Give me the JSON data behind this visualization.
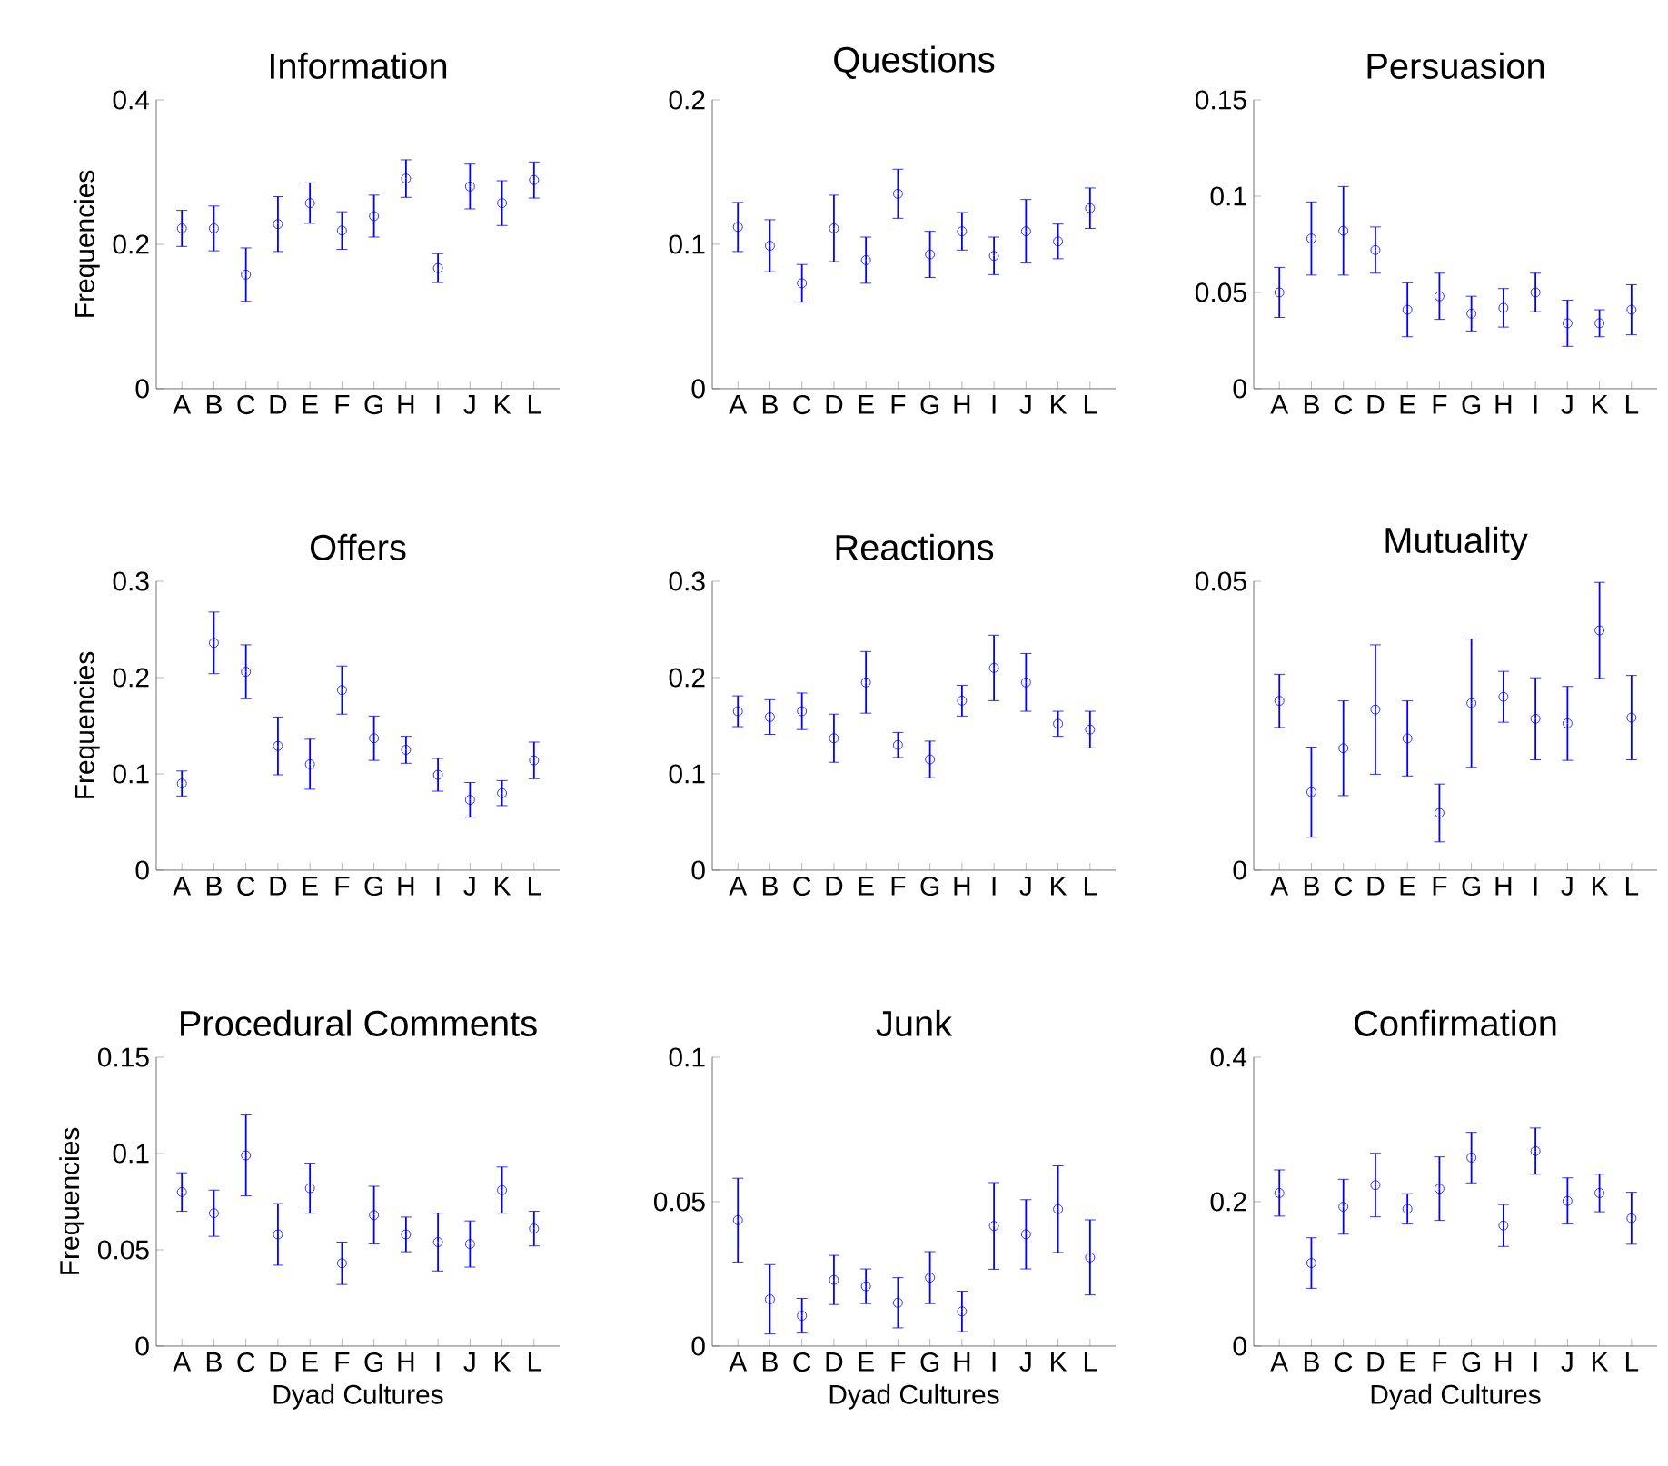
{
  "chart_data": [
    {
      "type": "scatter",
      "title": "Information",
      "ylabel": "Frequencies",
      "categories": [
        "A",
        "B",
        "C",
        "D",
        "E",
        "F",
        "G",
        "H",
        "I",
        "J",
        "K",
        "L"
      ],
      "color": "#0000ff",
      "marker": "circle",
      "ylim": [
        0,
        0.4
      ],
      "yticks": [
        0,
        0.2,
        0.4
      ],
      "values": [
        0.222,
        0.222,
        0.158,
        0.228,
        0.257,
        0.219,
        0.239,
        0.291,
        0.167,
        0.28,
        0.257,
        0.289
      ],
      "errors": [
        0.025,
        0.031,
        0.037,
        0.038,
        0.028,
        0.026,
        0.029,
        0.026,
        0.02,
        0.031,
        0.031,
        0.025
      ]
    },
    {
      "type": "scatter",
      "title": "Questions",
      "categories": [
        "A",
        "B",
        "C",
        "D",
        "E",
        "F",
        "G",
        "H",
        "I",
        "J",
        "K",
        "L"
      ],
      "color": "#0000ff",
      "marker": "circle",
      "ylim": [
        0,
        0.2
      ],
      "yticks": [
        0,
        0.1,
        0.2
      ],
      "values": [
        0.112,
        0.099,
        0.073,
        0.111,
        0.089,
        0.135,
        0.093,
        0.109,
        0.092,
        0.109,
        0.102,
        0.125
      ],
      "errors": [
        0.017,
        0.018,
        0.013,
        0.023,
        0.016,
        0.017,
        0.016,
        0.013,
        0.013,
        0.022,
        0.012,
        0.014
      ]
    },
    {
      "type": "scatter",
      "title": "Persuasion",
      "categories": [
        "A",
        "B",
        "C",
        "D",
        "E",
        "F",
        "G",
        "H",
        "I",
        "J",
        "K",
        "L"
      ],
      "color": "#0000ff",
      "marker": "circle",
      "ylim": [
        0,
        0.15
      ],
      "yticks": [
        0,
        0.05,
        0.1,
        0.15
      ],
      "values": [
        0.05,
        0.078,
        0.082,
        0.072,
        0.041,
        0.048,
        0.039,
        0.042,
        0.05,
        0.034,
        0.034,
        0.041
      ],
      "errors": [
        0.013,
        0.019,
        0.023,
        0.012,
        0.014,
        0.012,
        0.009,
        0.01,
        0.01,
        0.012,
        0.007,
        0.013
      ]
    },
    {
      "type": "scatter",
      "title": "Offers",
      "ylabel": "Frequencies",
      "categories": [
        "A",
        "B",
        "C",
        "D",
        "E",
        "F",
        "G",
        "H",
        "I",
        "J",
        "K",
        "L"
      ],
      "color": "#0000ff",
      "marker": "circle",
      "ylim": [
        0,
        0.3
      ],
      "yticks": [
        0,
        0.1,
        0.2,
        0.3
      ],
      "values": [
        0.09,
        0.236,
        0.206,
        0.129,
        0.11,
        0.187,
        0.137,
        0.125,
        0.099,
        0.073,
        0.08,
        0.114
      ],
      "errors": [
        0.013,
        0.032,
        0.028,
        0.03,
        0.026,
        0.025,
        0.023,
        0.014,
        0.017,
        0.018,
        0.013,
        0.019
      ]
    },
    {
      "type": "scatter",
      "title": "Reactions",
      "categories": [
        "A",
        "B",
        "C",
        "D",
        "E",
        "F",
        "G",
        "H",
        "I",
        "J",
        "K",
        "L"
      ],
      "color": "#0000ff",
      "marker": "circle",
      "ylim": [
        0,
        0.3
      ],
      "yticks": [
        0,
        0.1,
        0.2,
        0.3
      ],
      "values": [
        0.165,
        0.159,
        0.165,
        0.137,
        0.195,
        0.13,
        0.115,
        0.176,
        0.21,
        0.195,
        0.152,
        0.146
      ],
      "errors": [
        0.016,
        0.018,
        0.019,
        0.025,
        0.032,
        0.013,
        0.019,
        0.016,
        0.034,
        0.03,
        0.013,
        0.019
      ]
    },
    {
      "type": "scatter",
      "title": "Mutuality",
      "categories": [
        "A",
        "B",
        "C",
        "D",
        "E",
        "F",
        "G",
        "H",
        "I",
        "J",
        "K",
        "L"
      ],
      "color": "#0000ff",
      "marker": "circle",
      "ylim": [
        0,
        0.05
      ],
      "yticks": [
        0,
        0.05
      ],
      "values": [
        0.0293,
        0.0135,
        0.0211,
        0.0278,
        0.0228,
        0.0099,
        0.0289,
        0.03,
        0.0262,
        0.0254,
        0.0415,
        0.0264
      ],
      "errors": [
        0.0046,
        0.0078,
        0.0082,
        0.0112,
        0.0065,
        0.005,
        0.0111,
        0.0044,
        0.0071,
        0.0064,
        0.0083,
        0.0073
      ]
    },
    {
      "type": "scatter",
      "title": "Procedural Comments",
      "ylabel": "Frequencies",
      "xlabel": "Dyad Cultures",
      "categories": [
        "A",
        "B",
        "C",
        "D",
        "E",
        "F",
        "G",
        "H",
        "I",
        "J",
        "K",
        "L"
      ],
      "color": "#0000ff",
      "marker": "circle",
      "ylim": [
        0,
        0.15
      ],
      "yticks": [
        0,
        0.05,
        0.1,
        0.15
      ],
      "values": [
        0.08,
        0.069,
        0.099,
        0.058,
        0.082,
        0.043,
        0.068,
        0.058,
        0.054,
        0.053,
        0.081,
        0.061
      ],
      "errors": [
        0.01,
        0.012,
        0.021,
        0.016,
        0.013,
        0.011,
        0.015,
        0.009,
        0.015,
        0.012,
        0.012,
        0.009
      ]
    },
    {
      "type": "scatter",
      "title": "Junk",
      "xlabel": "Dyad Cultures",
      "categories": [
        "A",
        "B",
        "C",
        "D",
        "E",
        "F",
        "G",
        "H",
        "I",
        "J",
        "K",
        "L"
      ],
      "color": "#0000ff",
      "marker": "circle",
      "ylim": [
        0,
        0.1
      ],
      "yticks": [
        0,
        0.05,
        0.1
      ],
      "values": [
        0.0436,
        0.0162,
        0.0105,
        0.0229,
        0.0207,
        0.015,
        0.0237,
        0.012,
        0.0416,
        0.0387,
        0.0474,
        0.0307
      ],
      "errors": [
        0.0145,
        0.012,
        0.006,
        0.0085,
        0.006,
        0.0087,
        0.009,
        0.007,
        0.015,
        0.012,
        0.015,
        0.013
      ]
    },
    {
      "type": "scatter",
      "title": "Confirmation",
      "xlabel": "Dyad Cultures",
      "categories": [
        "A",
        "B",
        "C",
        "D",
        "E",
        "F",
        "G",
        "H",
        "I",
        "J",
        "K",
        "L"
      ],
      "color": "#0000ff",
      "marker": "circle",
      "ylim": [
        0,
        0.4
      ],
      "yticks": [
        0,
        0.2,
        0.4
      ],
      "values": [
        0.212,
        0.115,
        0.193,
        0.223,
        0.19,
        0.218,
        0.261,
        0.167,
        0.27,
        0.201,
        0.212,
        0.177
      ],
      "errors": [
        0.032,
        0.035,
        0.038,
        0.044,
        0.021,
        0.044,
        0.035,
        0.029,
        0.032,
        0.032,
        0.026,
        0.036
      ]
    }
  ]
}
